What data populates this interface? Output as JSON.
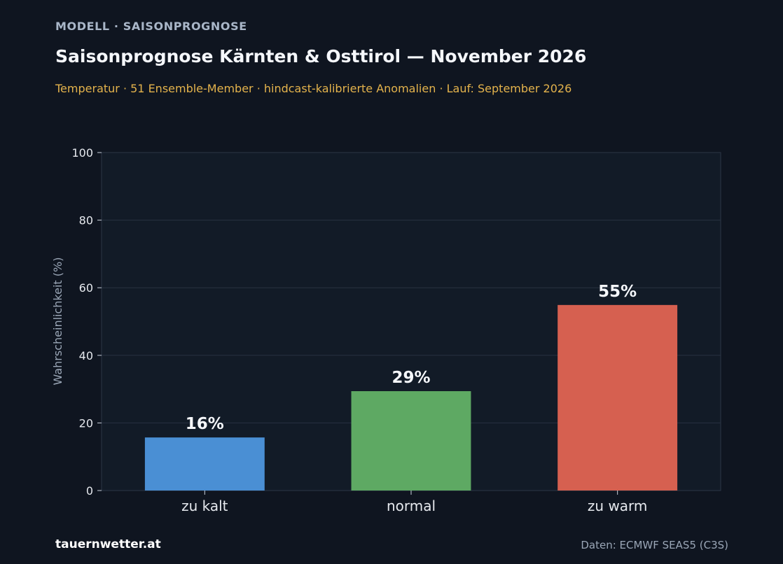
{
  "header": {
    "kicker": "MODELL · SAISONPROGNOSE",
    "title": "Saisonprognose Kärnten & Osttirol — November 2026",
    "subtitle": "Temperatur · 51 Ensemble-Member · hindcast-kalibrierte Anomalien · Lauf: September 2026"
  },
  "footer": {
    "brand": "tauernwetter.at",
    "source": "Daten: ECMWF SEAS5 (C3S)"
  },
  "chart_data": {
    "type": "bar",
    "categories": [
      "zu kalt",
      "normal",
      "zu warm"
    ],
    "values": [
      15.7,
      29.4,
      54.9
    ],
    "data_labels": [
      "16%",
      "29%",
      "55%"
    ],
    "colors": [
      "#4a8fd4",
      "#5ea963",
      "#d66050"
    ],
    "xlabel": "",
    "ylabel": "Wahrscheinlichkeit (%)",
    "ylim": [
      0,
      100
    ],
    "yticks": [
      0,
      20,
      40,
      60,
      80,
      100
    ],
    "grid": true,
    "legend": "none"
  }
}
